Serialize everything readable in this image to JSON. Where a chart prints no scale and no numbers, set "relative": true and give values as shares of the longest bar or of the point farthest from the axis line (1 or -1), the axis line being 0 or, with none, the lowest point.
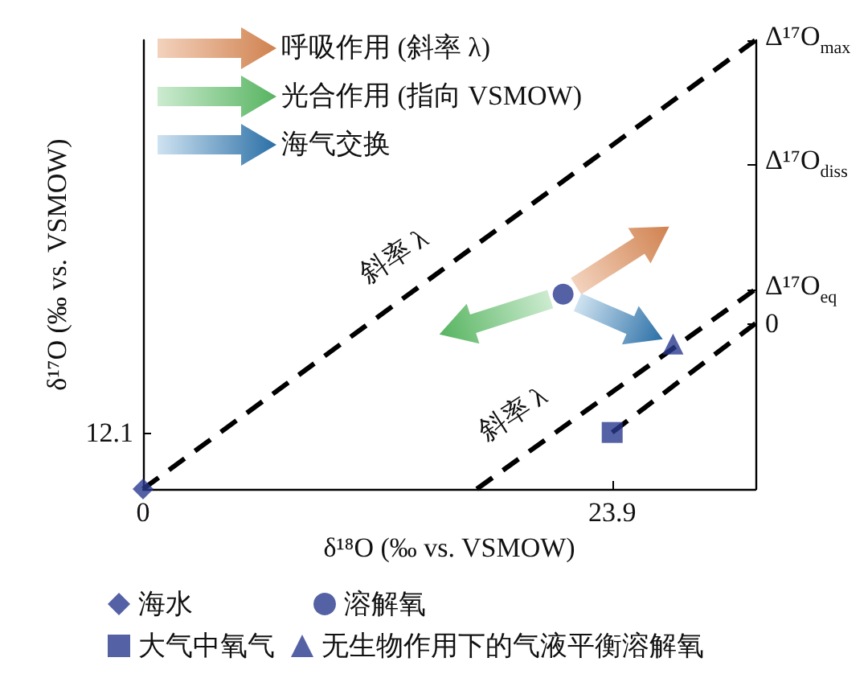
{
  "chart_data": {
    "type": "scatter",
    "xlabel": "δ¹⁸O (‰ vs. VSMOW)",
    "ylabel": "δ¹⁷O (‰ vs. VSMOW)",
    "xlim": [
      0,
      31.2
    ],
    "xticks": [
      0,
      23.9
    ],
    "relative": true,
    "series": [
      {
        "name": "海水",
        "marker": "diamond",
        "color": "#2b3a8f",
        "x": [
          0
        ],
        "values": [
          0
        ]
      },
      {
        "name": "溶解氧",
        "marker": "circle",
        "color": "#2b3a8f",
        "x": [
          21.4
        ],
        "values": [
          0.434
        ]
      },
      {
        "name": "大气中氧气",
        "marker": "square",
        "color": "#2b3a8f",
        "x": [
          23.9
        ],
        "values": [
          0.126
        ]
      },
      {
        "name": "无生物作用下的气液平衡溶解氧",
        "marker": "triangle",
        "color": "#2b3a8f",
        "x": [
          27.0
        ],
        "values": [
          0.323
        ]
      },
      {
        "type": "line",
        "color": "#000000",
        "line_style": "dashed",
        "marker": "none",
        "x": [
          0,
          31.2
        ],
        "values": [
          0,
          1
        ]
      },
      {
        "type": "line",
        "color": "#000000",
        "line_style": "dashed",
        "marker": "none",
        "x": [
          17.0,
          31.2
        ],
        "values": [
          0,
          0.445
        ]
      },
      {
        "type": "line",
        "color": "#000000",
        "line_style": "dashed",
        "marker": "none",
        "x": [
          23.9,
          31.2
        ],
        "values": [
          0.126,
          0.369
        ]
      }
    ],
    "legend": "bottom",
    "grid": false,
    "annotations": [
      "呼吸作用 (斜率 λ)",
      "光合作用 (指向 VSMOW)",
      "海气交换",
      "斜率 λ",
      "斜率 λ",
      "12.1",
      "0",
      "Δ¹⁷O$_{eq}$",
      "Δ¹⁷O$_{diss}$",
      "Δ¹⁷O$_{max}$"
    ]
  }
}
